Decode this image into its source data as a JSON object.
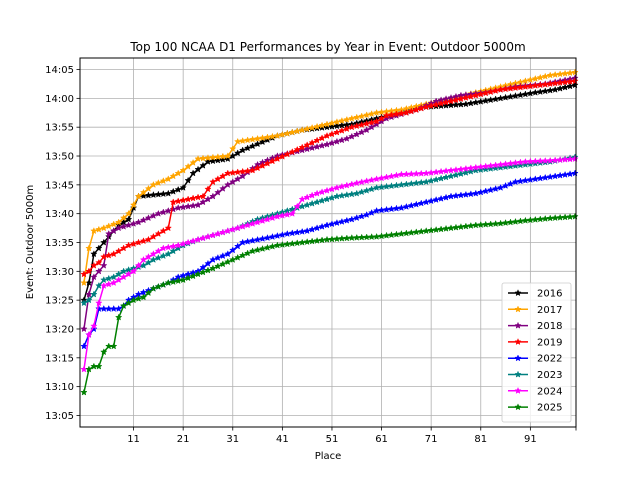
{
  "chart_data": {
    "type": "line",
    "title": "Top 100 NCAA D1 Performances by Year in Event: Outdoor 5000m",
    "xlabel": "Place",
    "ylabel": "Event: Outdoor 5000m",
    "xlim": [
      1,
      100
    ],
    "ylim_seconds": [
      783,
      847
    ],
    "x_ticks": [
      11,
      21,
      31,
      41,
      51,
      61,
      71,
      81,
      91
    ],
    "x_tick_labels": [
      "11",
      "21",
      "31",
      "41",
      "51",
      "61",
      "71",
      "81",
      "91"
    ],
    "y_ticks_seconds": [
      785,
      790,
      795,
      800,
      805,
      810,
      815,
      820,
      825,
      830,
      835,
      840,
      845
    ],
    "y_tick_labels": [
      "13:05",
      "13:10",
      "13:15",
      "13:20",
      "13:25",
      "13:30",
      "13:35",
      "13:40",
      "13:45",
      "13:50",
      "13:55",
      "14:00",
      "14:05"
    ],
    "grid": true,
    "legend_position": "lower-right",
    "marker": "star",
    "series": [
      {
        "name": "2016",
        "color": "#000000",
        "anchors": [
          [
            1,
            805
          ],
          [
            2,
            808
          ],
          [
            3,
            813
          ],
          [
            4,
            814
          ],
          [
            5,
            815
          ],
          [
            8,
            818
          ],
          [
            10,
            819
          ],
          [
            12,
            823
          ],
          [
            18,
            823.5
          ],
          [
            21,
            824.5
          ],
          [
            23,
            827
          ],
          [
            26,
            829
          ],
          [
            30,
            829.5
          ],
          [
            33,
            831
          ],
          [
            40,
            833.5
          ],
          [
            45,
            834.5
          ],
          [
            50,
            835
          ],
          [
            55,
            835.5
          ],
          [
            60,
            836.5
          ],
          [
            65,
            837.5
          ],
          [
            70,
            838.5
          ],
          [
            78,
            839
          ],
          [
            85,
            840
          ],
          [
            92,
            841
          ],
          [
            96,
            841.5
          ],
          [
            100,
            842.3
          ]
        ]
      },
      {
        "name": "2017",
        "color": "#ffa500",
        "anchors": [
          [
            1,
            808
          ],
          [
            2,
            814
          ],
          [
            3,
            817
          ],
          [
            5,
            817.5
          ],
          [
            8,
            818.5
          ],
          [
            10,
            820
          ],
          [
            12,
            823
          ],
          [
            15,
            825
          ],
          [
            18,
            826
          ],
          [
            21,
            827.5
          ],
          [
            24,
            829.5
          ],
          [
            30,
            830
          ],
          [
            32,
            832.5
          ],
          [
            36,
            833
          ],
          [
            40,
            833.5
          ],
          [
            45,
            834.5
          ],
          [
            50,
            835.5
          ],
          [
            55,
            836.5
          ],
          [
            60,
            837.5
          ],
          [
            65,
            838
          ],
          [
            70,
            839
          ],
          [
            75,
            840
          ],
          [
            80,
            841
          ],
          [
            85,
            842
          ],
          [
            90,
            843
          ],
          [
            95,
            844
          ],
          [
            100,
            844.5
          ]
        ]
      },
      {
        "name": "2018",
        "color": "#800080",
        "anchors": [
          [
            1,
            800
          ],
          [
            2,
            806
          ],
          [
            3,
            809
          ],
          [
            4,
            810
          ],
          [
            5,
            811
          ],
          [
            6,
            816.5
          ],
          [
            8,
            817.5
          ],
          [
            12,
            818.5
          ],
          [
            16,
            820
          ],
          [
            20,
            821
          ],
          [
            24,
            821.5
          ],
          [
            27,
            823
          ],
          [
            30,
            825
          ],
          [
            33,
            826.5
          ],
          [
            36,
            828.5
          ],
          [
            40,
            830
          ],
          [
            45,
            831
          ],
          [
            50,
            832
          ],
          [
            54,
            833
          ],
          [
            58,
            834.5
          ],
          [
            62,
            836.5
          ],
          [
            68,
            838
          ],
          [
            72,
            839.5
          ],
          [
            77,
            840.5
          ],
          [
            82,
            841
          ],
          [
            88,
            842
          ],
          [
            94,
            842.5
          ],
          [
            100,
            843.5
          ]
        ]
      },
      {
        "name": "2019",
        "color": "#ff0000",
        "anchors": [
          [
            1,
            809.5
          ],
          [
            2,
            810
          ],
          [
            3,
            811
          ],
          [
            4,
            811.5
          ],
          [
            5,
            812.5
          ],
          [
            7,
            813
          ],
          [
            10,
            814.5
          ],
          [
            14,
            815.5
          ],
          [
            18,
            817.5
          ],
          [
            19,
            822
          ],
          [
            22,
            822.5
          ],
          [
            25,
            823
          ],
          [
            27,
            825.5
          ],
          [
            30,
            827
          ],
          [
            35,
            827.5
          ],
          [
            40,
            829.5
          ],
          [
            45,
            831.5
          ],
          [
            50,
            833.5
          ],
          [
            55,
            835
          ],
          [
            60,
            836
          ],
          [
            62,
            837
          ],
          [
            66,
            837.5
          ],
          [
            70,
            838.5
          ],
          [
            75,
            839.5
          ],
          [
            80,
            840.5
          ],
          [
            85,
            841.5
          ],
          [
            90,
            842
          ],
          [
            95,
            842.5
          ],
          [
            100,
            843
          ]
        ]
      },
      {
        "name": "2022",
        "color": "#0000ff",
        "anchors": [
          [
            1,
            797
          ],
          [
            2,
            799
          ],
          [
            3,
            800
          ],
          [
            4,
            803.5
          ],
          [
            6,
            803.5
          ],
          [
            8,
            803.5
          ],
          [
            9,
            804
          ],
          [
            10,
            805
          ],
          [
            12,
            806
          ],
          [
            15,
            807
          ],
          [
            18,
            808
          ],
          [
            20,
            809
          ],
          [
            24,
            810
          ],
          [
            27,
            812
          ],
          [
            30,
            813
          ],
          [
            33,
            815
          ],
          [
            38,
            815.8
          ],
          [
            42,
            816.5
          ],
          [
            46,
            817
          ],
          [
            50,
            818
          ],
          [
            55,
            819
          ],
          [
            58,
            819.8
          ],
          [
            60,
            820.5
          ],
          [
            65,
            821
          ],
          [
            70,
            822
          ],
          [
            75,
            823
          ],
          [
            80,
            823.5
          ],
          [
            85,
            824.5
          ],
          [
            88,
            825.5
          ],
          [
            92,
            826
          ],
          [
            96,
            826.5
          ],
          [
            100,
            827
          ]
        ]
      },
      {
        "name": "2023",
        "color": "#008080",
        "anchors": [
          [
            1,
            804.5
          ],
          [
            2,
            805
          ],
          [
            3,
            806
          ],
          [
            4,
            807.5
          ],
          [
            5,
            808.5
          ],
          [
            7,
            809
          ],
          [
            9,
            810
          ],
          [
            11,
            810.5
          ],
          [
            13,
            811
          ],
          [
            15,
            812
          ],
          [
            18,
            813
          ],
          [
            21,
            814.5
          ],
          [
            24,
            815.5
          ],
          [
            28,
            816.5
          ],
          [
            32,
            817.5
          ],
          [
            36,
            819
          ],
          [
            40,
            820
          ],
          [
            44,
            821
          ],
          [
            48,
            822
          ],
          [
            52,
            823
          ],
          [
            56,
            823.5
          ],
          [
            60,
            824.5
          ],
          [
            65,
            825
          ],
          [
            70,
            825.5
          ],
          [
            75,
            826.5
          ],
          [
            80,
            827.5
          ],
          [
            85,
            828
          ],
          [
            90,
            828.5
          ],
          [
            95,
            829
          ],
          [
            100,
            829.8
          ]
        ]
      },
      {
        "name": "2024",
        "color": "#ff00ff",
        "anchors": [
          [
            1,
            793
          ],
          [
            2,
            799
          ],
          [
            3,
            800.5
          ],
          [
            4,
            804.5
          ],
          [
            5,
            807.5
          ],
          [
            7,
            808
          ],
          [
            9,
            809
          ],
          [
            11,
            810
          ],
          [
            13,
            812
          ],
          [
            15,
            813
          ],
          [
            17,
            814
          ],
          [
            20,
            814.5
          ],
          [
            24,
            815.5
          ],
          [
            28,
            816.5
          ],
          [
            32,
            817.5
          ],
          [
            36,
            818.5
          ],
          [
            40,
            819.5
          ],
          [
            43,
            820
          ],
          [
            45,
            822.5
          ],
          [
            48,
            823.5
          ],
          [
            52,
            824.5
          ],
          [
            56,
            825.3
          ],
          [
            60,
            826
          ],
          [
            65,
            826.8
          ],
          [
            70,
            827
          ],
          [
            75,
            827.5
          ],
          [
            80,
            828
          ],
          [
            85,
            828.5
          ],
          [
            90,
            829
          ],
          [
            95,
            829.2
          ],
          [
            100,
            829.5
          ]
        ]
      },
      {
        "name": "2025",
        "color": "#008000",
        "anchors": [
          [
            1,
            789
          ],
          [
            2,
            793
          ],
          [
            3,
            793.5
          ],
          [
            4,
            793.5
          ],
          [
            5,
            796
          ],
          [
            6,
            797
          ],
          [
            7,
            797
          ],
          [
            8,
            802
          ],
          [
            9,
            804
          ],
          [
            11,
            805
          ],
          [
            13,
            805.5
          ],
          [
            15,
            807
          ],
          [
            18,
            808
          ],
          [
            21,
            808.5
          ],
          [
            24,
            809.5
          ],
          [
            27,
            810.5
          ],
          [
            31,
            812
          ],
          [
            35,
            813.5
          ],
          [
            40,
            814.5
          ],
          [
            45,
            815
          ],
          [
            50,
            815.5
          ],
          [
            55,
            815.8
          ],
          [
            60,
            816
          ],
          [
            65,
            816.5
          ],
          [
            70,
            817
          ],
          [
            75,
            817.5
          ],
          [
            80,
            818
          ],
          [
            85,
            818.3
          ],
          [
            90,
            818.8
          ],
          [
            95,
            819.2
          ],
          [
            100,
            819.5
          ]
        ]
      }
    ]
  }
}
